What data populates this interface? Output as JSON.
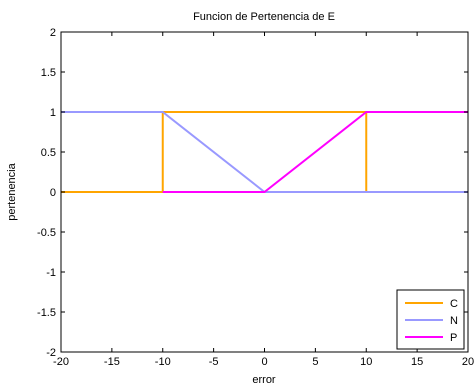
{
  "chart_data": {
    "type": "line",
    "title": "Funcion de Pertenencia de E",
    "xlabel": "error",
    "ylabel": "pertenencia",
    "xlim": [
      -20,
      20
    ],
    "ylim": [
      -2,
      2
    ],
    "xticks": [
      -20,
      -15,
      -10,
      -5,
      0,
      5,
      10,
      15,
      20
    ],
    "yticks": [
      -2,
      -1.5,
      -1,
      -0.5,
      0,
      0.5,
      1,
      1.5,
      2
    ],
    "xtick_labels": [
      "-20",
      "-15",
      "-10",
      "-5",
      "0",
      "5",
      "10",
      "15",
      "20"
    ],
    "ytick_labels": [
      "-2",
      "-1.5",
      "-1",
      "-0.5",
      "0",
      "0.5",
      "1",
      "1.5",
      "2"
    ],
    "grid": false,
    "legend_position": "bottom-right",
    "series": [
      {
        "name": "C",
        "color": "#FFA500",
        "x": [
          -20,
          -10,
          -10,
          10,
          10,
          20
        ],
        "y": [
          0,
          0,
          1,
          1,
          0,
          0
        ]
      },
      {
        "name": "N",
        "color": "#9999FF",
        "x": [
          -20,
          -10,
          0,
          20
        ],
        "y": [
          1,
          1,
          0,
          0
        ]
      },
      {
        "name": "P",
        "color": "#FF00FF",
        "x": [
          -10,
          0,
          10,
          20
        ],
        "y": [
          0,
          0,
          1,
          1
        ]
      }
    ]
  }
}
